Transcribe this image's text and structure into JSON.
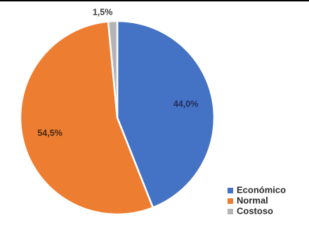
{
  "chart_data": {
    "type": "pie",
    "title": "",
    "slices": [
      {
        "name": "Económico",
        "value": 44.0,
        "label": "44,0%",
        "color": "#4472c4"
      },
      {
        "name": "Normal",
        "value": 54.5,
        "label": "54,5%",
        "color": "#ed7d31"
      },
      {
        "name": "Costoso",
        "value": 1.5,
        "label": "1,5%",
        "color": "#b4b4b4"
      }
    ],
    "legend_position": "bottom-right"
  }
}
